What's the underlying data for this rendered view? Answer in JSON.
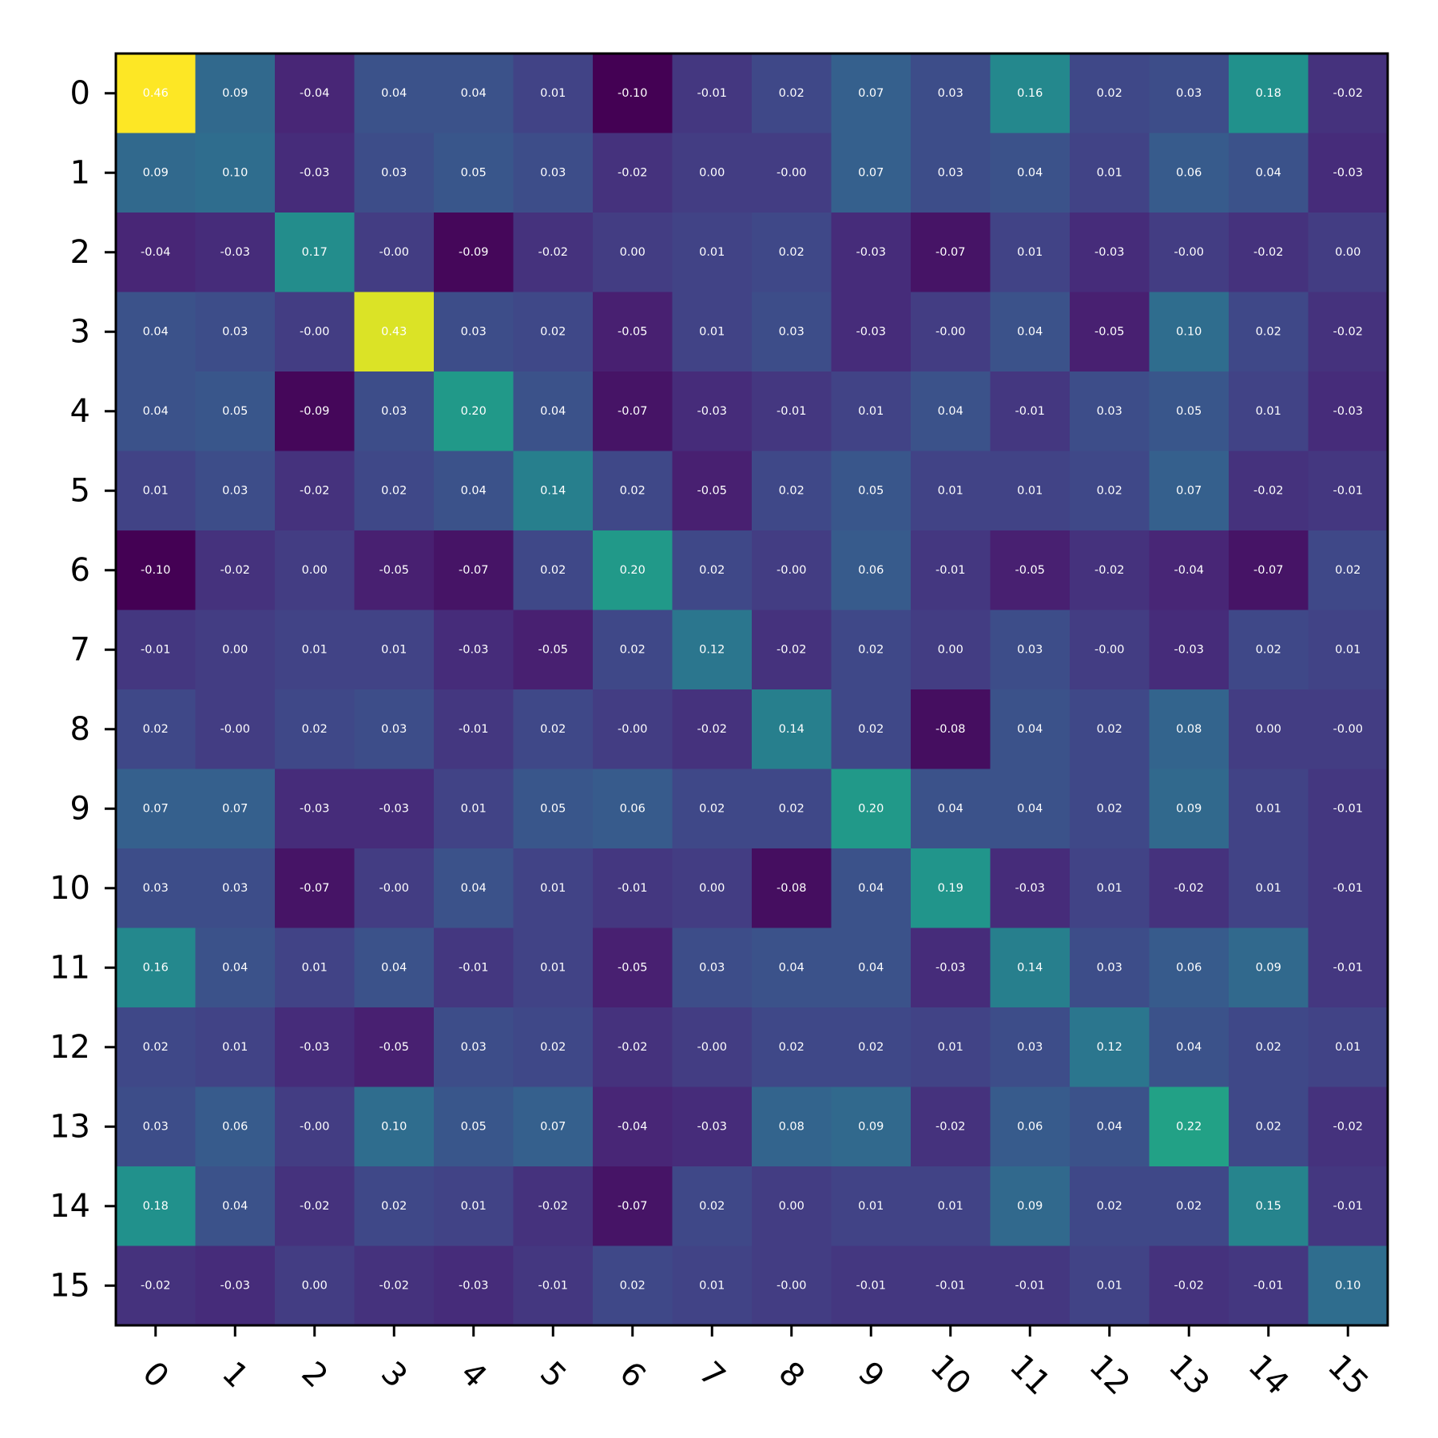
{
  "chart_data": {
    "type": "heatmap",
    "title": "",
    "xlabel": "",
    "ylabel": "",
    "x_tick_labels": [
      "0",
      "1",
      "2",
      "3",
      "4",
      "5",
      "6",
      "7",
      "8",
      "9",
      "10",
      "11",
      "12",
      "13",
      "14",
      "15"
    ],
    "y_tick_labels": [
      "0",
      "1",
      "2",
      "3",
      "4",
      "5",
      "6",
      "7",
      "8",
      "9",
      "10",
      "11",
      "12",
      "13",
      "14",
      "15"
    ],
    "colormap": "viridis",
    "value_range": [
      -0.1,
      0.46
    ],
    "values": [
      [
        0.46,
        0.09,
        -0.04,
        0.04,
        0.04,
        0.01,
        -0.1,
        -0.01,
        0.02,
        0.07,
        0.03,
        0.16,
        0.02,
        0.03,
        0.18,
        -0.02
      ],
      [
        0.09,
        0.1,
        -0.03,
        0.03,
        0.05,
        0.03,
        -0.02,
        0.0,
        -0.0,
        0.07,
        0.03,
        0.04,
        0.01,
        0.06,
        0.04,
        -0.03
      ],
      [
        -0.04,
        -0.03,
        0.17,
        -0.0,
        -0.09,
        -0.02,
        0.0,
        0.01,
        0.02,
        -0.03,
        -0.07,
        0.01,
        -0.03,
        -0.0,
        -0.02,
        0.0
      ],
      [
        0.04,
        0.03,
        -0.0,
        0.43,
        0.03,
        0.02,
        -0.05,
        0.01,
        0.03,
        -0.03,
        -0.0,
        0.04,
        -0.05,
        0.1,
        0.02,
        -0.02
      ],
      [
        0.04,
        0.05,
        -0.09,
        0.03,
        0.2,
        0.04,
        -0.07,
        -0.03,
        -0.01,
        0.01,
        0.04,
        -0.01,
        0.03,
        0.05,
        0.01,
        -0.03
      ],
      [
        0.01,
        0.03,
        -0.02,
        0.02,
        0.04,
        0.14,
        0.02,
        -0.05,
        0.02,
        0.05,
        0.01,
        0.01,
        0.02,
        0.07,
        -0.02,
        -0.01
      ],
      [
        -0.1,
        -0.02,
        0.0,
        -0.05,
        -0.07,
        0.02,
        0.2,
        0.02,
        -0.0,
        0.06,
        -0.01,
        -0.05,
        -0.02,
        -0.04,
        -0.07,
        0.02
      ],
      [
        -0.01,
        0.0,
        0.01,
        0.01,
        -0.03,
        -0.05,
        0.02,
        0.12,
        -0.02,
        0.02,
        0.0,
        0.03,
        -0.0,
        -0.03,
        0.02,
        0.01
      ],
      [
        0.02,
        -0.0,
        0.02,
        0.03,
        -0.01,
        0.02,
        -0.0,
        -0.02,
        0.14,
        0.02,
        -0.08,
        0.04,
        0.02,
        0.08,
        0.0,
        -0.0
      ],
      [
        0.07,
        0.07,
        -0.03,
        -0.03,
        0.01,
        0.05,
        0.06,
        0.02,
        0.02,
        0.2,
        0.04,
        0.04,
        0.02,
        0.09,
        0.01,
        -0.01
      ],
      [
        0.03,
        0.03,
        -0.07,
        -0.0,
        0.04,
        0.01,
        -0.01,
        0.0,
        -0.08,
        0.04,
        0.19,
        -0.03,
        0.01,
        -0.02,
        0.01,
        -0.01
      ],
      [
        0.16,
        0.04,
        0.01,
        0.04,
        -0.01,
        0.01,
        -0.05,
        0.03,
        0.04,
        0.04,
        -0.03,
        0.14,
        0.03,
        0.06,
        0.09,
        -0.01
      ],
      [
        0.02,
        0.01,
        -0.03,
        -0.05,
        0.03,
        0.02,
        -0.02,
        -0.0,
        0.02,
        0.02,
        0.01,
        0.03,
        0.12,
        0.04,
        0.02,
        0.01
      ],
      [
        0.03,
        0.06,
        -0.0,
        0.1,
        0.05,
        0.07,
        -0.04,
        -0.03,
        0.08,
        0.09,
        -0.02,
        0.06,
        0.04,
        0.22,
        0.02,
        -0.02
      ],
      [
        0.18,
        0.04,
        -0.02,
        0.02,
        0.01,
        -0.02,
        -0.07,
        0.02,
        0.0,
        0.01,
        0.01,
        0.09,
        0.02,
        0.02,
        0.15,
        -0.01
      ],
      [
        -0.02,
        -0.03,
        0.0,
        -0.02,
        -0.03,
        -0.01,
        0.02,
        0.01,
        -0.0,
        -0.01,
        -0.01,
        -0.01,
        0.01,
        -0.02,
        -0.01,
        0.1
      ]
    ],
    "value_labels": [
      [
        "0.46",
        "0.09",
        "-0.04",
        "0.04",
        "0.04",
        "0.01",
        "-0.10",
        "-0.01",
        "0.02",
        "0.07",
        "0.03",
        "0.16",
        "0.02",
        "0.03",
        "0.18",
        "-0.02"
      ],
      [
        "0.09",
        "0.10",
        "-0.03",
        "0.03",
        "0.05",
        "0.03",
        "-0.02",
        "0.00",
        "-0.00",
        "0.07",
        "0.03",
        "0.04",
        "0.01",
        "0.06",
        "0.04",
        "-0.03"
      ],
      [
        "-0.04",
        "-0.03",
        "0.17",
        "-0.00",
        "-0.09",
        "-0.02",
        "0.00",
        "0.01",
        "0.02",
        "-0.03",
        "-0.07",
        "0.01",
        "-0.03",
        "-0.00",
        "-0.02",
        "0.00"
      ],
      [
        "0.04",
        "0.03",
        "-0.00",
        "0.43",
        "0.03",
        "0.02",
        "-0.05",
        "0.01",
        "0.03",
        "-0.03",
        "-0.00",
        "0.04",
        "-0.05",
        "0.10",
        "0.02",
        "-0.02"
      ],
      [
        "0.04",
        "0.05",
        "-0.09",
        "0.03",
        "0.20",
        "0.04",
        "-0.07",
        "-0.03",
        "-0.01",
        "0.01",
        "0.04",
        "-0.01",
        "0.03",
        "0.05",
        "0.01",
        "-0.03"
      ],
      [
        "0.01",
        "0.03",
        "-0.02",
        "0.02",
        "0.04",
        "0.14",
        "0.02",
        "-0.05",
        "0.02",
        "0.05",
        "0.01",
        "0.01",
        "0.02",
        "0.07",
        "-0.02",
        "-0.01"
      ],
      [
        "-0.10",
        "-0.02",
        "0.00",
        "-0.05",
        "-0.07",
        "0.02",
        "0.20",
        "0.02",
        "-0.00",
        "0.06",
        "-0.01",
        "-0.05",
        "-0.02",
        "-0.04",
        "-0.07",
        "0.02"
      ],
      [
        "-0.01",
        "0.00",
        "0.01",
        "0.01",
        "-0.03",
        "-0.05",
        "0.02",
        "0.12",
        "-0.02",
        "0.02",
        "0.00",
        "0.03",
        "-0.00",
        "-0.03",
        "0.02",
        "0.01"
      ],
      [
        "0.02",
        "-0.00",
        "0.02",
        "0.03",
        "-0.01",
        "0.02",
        "-0.00",
        "-0.02",
        "0.14",
        "0.02",
        "-0.08",
        "0.04",
        "0.02",
        "0.08",
        "0.00",
        "-0.00"
      ],
      [
        "0.07",
        "0.07",
        "-0.03",
        "-0.03",
        "0.01",
        "0.05",
        "0.06",
        "0.02",
        "0.02",
        "0.20",
        "0.04",
        "0.04",
        "0.02",
        "0.09",
        "0.01",
        "-0.01"
      ],
      [
        "0.03",
        "0.03",
        "-0.07",
        "-0.00",
        "0.04",
        "0.01",
        "-0.01",
        "0.00",
        "-0.08",
        "0.04",
        "0.19",
        "-0.03",
        "0.01",
        "-0.02",
        "0.01",
        "-0.01"
      ],
      [
        "0.16",
        "0.04",
        "0.01",
        "0.04",
        "-0.01",
        "0.01",
        "-0.05",
        "0.03",
        "0.04",
        "0.04",
        "-0.03",
        "0.14",
        "0.03",
        "0.06",
        "0.09",
        "-0.01"
      ],
      [
        "0.02",
        "0.01",
        "-0.03",
        "-0.05",
        "0.03",
        "0.02",
        "-0.02",
        "-0.00",
        "0.02",
        "0.02",
        "0.01",
        "0.03",
        "0.12",
        "0.04",
        "0.02",
        "0.01"
      ],
      [
        "0.03",
        "0.06",
        "-0.00",
        "0.10",
        "0.05",
        "0.07",
        "-0.04",
        "-0.03",
        "0.08",
        "0.09",
        "-0.02",
        "0.06",
        "0.04",
        "0.22",
        "0.02",
        "-0.02"
      ],
      [
        "0.18",
        "0.04",
        "-0.02",
        "0.02",
        "0.01",
        "-0.02",
        "-0.07",
        "0.02",
        "0.00",
        "0.01",
        "0.01",
        "0.09",
        "0.02",
        "0.02",
        "0.15",
        "-0.01"
      ],
      [
        "-0.02",
        "-0.03",
        "0.00",
        "-0.02",
        "-0.03",
        "-0.01",
        "0.02",
        "0.01",
        "-0.00",
        "-0.01",
        "-0.01",
        "-0.01",
        "0.01",
        "-0.02",
        "-0.01",
        "0.10"
      ]
    ],
    "grid": false,
    "colorbar": false,
    "x_tick_rotation_deg": 45
  }
}
